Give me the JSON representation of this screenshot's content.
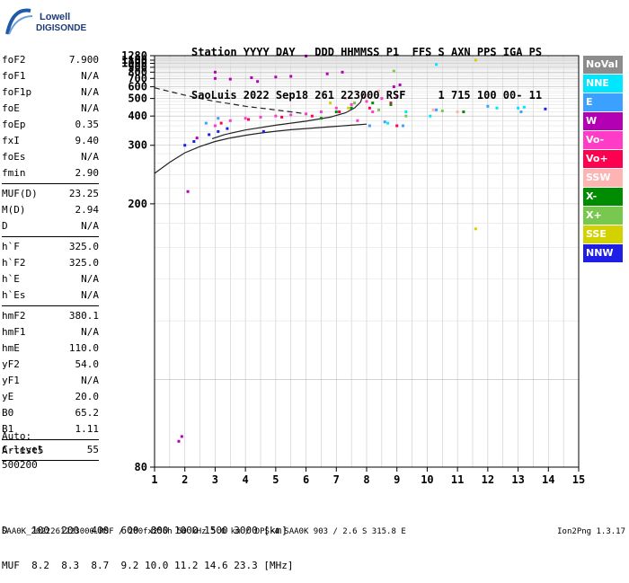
{
  "logo": {
    "line1": "Lowell",
    "line2": "DIGISONDE"
  },
  "header": {
    "line1": "Station YYYY DAY   DDD HHMMSS P1  FFS S AXN PPS IGA PS",
    "line2": "SaoLuis 2022 Sep18 261 223000 RSF     1 715 100 00- 11"
  },
  "params": [
    {
      "name": "foF2",
      "value": "7.900"
    },
    {
      "name": "foF1",
      "value": "N/A"
    },
    {
      "name": "foF1p",
      "value": "N/A"
    },
    {
      "name": "foE",
      "value": "N/A"
    },
    {
      "name": "foEp",
      "value": "0.35"
    },
    {
      "name": "fxI",
      "value": "9.40"
    },
    {
      "name": "foEs",
      "value": "N/A"
    },
    {
      "name": "fmin",
      "value": "2.90"
    },
    {
      "sep": true
    },
    {
      "name": "MUF(D)",
      "value": "23.25"
    },
    {
      "name": "M(D)",
      "value": "2.94"
    },
    {
      "name": "D",
      "value": "N/A"
    },
    {
      "sep": true
    },
    {
      "name": "h`F",
      "value": "325.0"
    },
    {
      "name": "h`F2",
      "value": "325.0"
    },
    {
      "name": "h`E",
      "value": "N/A"
    },
    {
      "name": "h`Es",
      "value": "N/A"
    },
    {
      "sep": true
    },
    {
      "name": "hmF2",
      "value": "380.1"
    },
    {
      "name": "hmF1",
      "value": "N/A"
    },
    {
      "name": "hmE",
      "value": "110.0"
    },
    {
      "name": "yF2",
      "value": "54.0"
    },
    {
      "name": "yF1",
      "value": "N/A"
    },
    {
      "name": "yE",
      "value": "20.0"
    },
    {
      "name": "B0",
      "value": "65.2"
    },
    {
      "name": "B1",
      "value": "1.11"
    },
    {
      "sep": true
    },
    {
      "name": "C-level",
      "value": "55"
    },
    {
      "sep": true
    }
  ],
  "auto": [
    "Auto:",
    "Artist5",
    "500200"
  ],
  "legend": [
    {
      "label": "NoVal",
      "color": "#8c8c8c"
    },
    {
      "label": "NNE",
      "color": "#00e6ff"
    },
    {
      "label": "E",
      "color": "#3ca0ff"
    },
    {
      "label": "W",
      "color": "#b400b4"
    },
    {
      "label": "Vo-",
      "color": "#ff3cc8"
    },
    {
      "label": "Vo+",
      "color": "#ff0050"
    },
    {
      "label": "SSW",
      "color": "#ffb4b4"
    },
    {
      "label": "X-",
      "color": "#008c00"
    },
    {
      "label": "X+",
      "color": "#78c850"
    },
    {
      "label": "SSE",
      "color": "#d2d200"
    },
    {
      "label": "NNW",
      "color": "#1e1ee6"
    }
  ],
  "dmuf": {
    "line1": "D    100  200  400  600  800 1000 1500 3000 [km]",
    "line2": "MUF  8.2  8.3  8.7  9.2 10.0 11.2 14.6 23.3 [MHz]"
  },
  "footer": {
    "left": "SAA0K_2022261223000.RSF / 280fx256h 50 kHz 5.0 km / DPS-4 SAA0K 903 / 2.6 S 315.8 E",
    "right": "Ion2Png 1.3.17"
  },
  "chart_data": {
    "type": "scatter",
    "xlim": [
      1,
      15
    ],
    "ylim": [
      80,
      1280
    ],
    "x_ticks": [
      1,
      2,
      3,
      4,
      5,
      6,
      7,
      8,
      9,
      10,
      11,
      12,
      13,
      14,
      15
    ],
    "y_ticks": [
      80,
      200,
      300,
      400,
      500,
      600,
      700,
      800,
      900,
      1000,
      1100,
      1280
    ],
    "y_scale": "reciprocal",
    "grid": true,
    "series": [
      {
        "name": "NoVal",
        "color": "#8c8c8c",
        "points": []
      },
      {
        "name": "NNE",
        "color": "#00e6ff",
        "points": [
          [
            9.3,
            420
          ],
          [
            10.1,
            400
          ],
          [
            12.3,
            440
          ],
          [
            13.0,
            440
          ],
          [
            13.2,
            445
          ],
          [
            8.7,
            370
          ],
          [
            10.3,
            970
          ]
        ]
      },
      {
        "name": "E",
        "color": "#3ca0ff",
        "points": [
          [
            2.7,
            370
          ],
          [
            3.1,
            390
          ],
          [
            8.1,
            360
          ],
          [
            8.6,
            375
          ],
          [
            9.2,
            360
          ],
          [
            10.3,
            430
          ],
          [
            12.0,
            450
          ],
          [
            13.1,
            420
          ]
        ]
      },
      {
        "name": "W",
        "color": "#b400b4",
        "points": [
          [
            1.8,
            85
          ],
          [
            1.9,
            86
          ],
          [
            2.1,
            215
          ],
          [
            2.4,
            320
          ],
          [
            3.0,
            700
          ],
          [
            3.5,
            690
          ],
          [
            4.2,
            710
          ],
          [
            5.0,
            720
          ],
          [
            5.5,
            730
          ],
          [
            6.7,
            770
          ],
          [
            7.2,
            800
          ],
          [
            8.9,
            600
          ],
          [
            9.1,
            620
          ],
          [
            6.0,
            1265
          ],
          [
            3.0,
            800
          ],
          [
            4.4,
            660
          ]
        ]
      },
      {
        "name": "Vo-",
        "color": "#ff3cc8",
        "points": [
          [
            3.0,
            360
          ],
          [
            3.5,
            380
          ],
          [
            4.0,
            390
          ],
          [
            4.5,
            395
          ],
          [
            5.0,
            400
          ],
          [
            5.5,
            405
          ],
          [
            6.0,
            410
          ],
          [
            6.5,
            420
          ],
          [
            7.0,
            440
          ],
          [
            7.5,
            460
          ],
          [
            8.0,
            480
          ],
          [
            8.5,
            500
          ],
          [
            9.0,
            520
          ],
          [
            8.2,
            420
          ],
          [
            7.7,
            380
          ]
        ]
      },
      {
        "name": "Vo+",
        "color": "#ff0050",
        "points": [
          [
            3.2,
            370
          ],
          [
            4.1,
            385
          ],
          [
            5.2,
            395
          ],
          [
            6.2,
            400
          ],
          [
            7.1,
            420
          ],
          [
            8.1,
            440
          ],
          [
            8.8,
            470
          ],
          [
            9.0,
            360
          ]
        ]
      },
      {
        "name": "SSW",
        "color": "#ffb4b4",
        "points": [
          [
            7.3,
            500
          ],
          [
            8.0,
            520
          ],
          [
            8.4,
            560
          ],
          [
            10.2,
            430
          ],
          [
            11.0,
            420
          ]
        ]
      },
      {
        "name": "X-",
        "color": "#008c00",
        "points": [
          [
            6.5,
            390
          ],
          [
            7.0,
            420
          ],
          [
            7.5,
            440
          ],
          [
            8.2,
            470
          ],
          [
            8.8,
            460
          ],
          [
            11.2,
            420
          ]
        ]
      },
      {
        "name": "X+",
        "color": "#78c850",
        "points": [
          [
            7.6,
            470
          ],
          [
            8.4,
            430
          ],
          [
            9.3,
            400
          ],
          [
            10.5,
            425
          ],
          [
            8.9,
            820
          ]
        ]
      },
      {
        "name": "SSE",
        "color": "#d2d200",
        "points": [
          [
            6.8,
            470
          ],
          [
            7.4,
            440
          ],
          [
            11.6,
            1100
          ],
          [
            11.6,
            175
          ]
        ]
      },
      {
        "name": "NNW",
        "color": "#1e1ee6",
        "points": [
          [
            2.0,
            300
          ],
          [
            2.3,
            310
          ],
          [
            2.8,
            330
          ],
          [
            3.1,
            340
          ],
          [
            3.4,
            350
          ],
          [
            13.9,
            435
          ],
          [
            4.6,
            340
          ]
        ]
      }
    ],
    "curves": [
      {
        "name": "dashed",
        "style": "dashed",
        "points": [
          [
            1.0,
            590
          ],
          [
            1.5,
            555
          ],
          [
            2.0,
            525
          ],
          [
            2.5,
            500
          ],
          [
            3.0,
            480
          ],
          [
            3.5,
            465
          ],
          [
            4.0,
            450
          ],
          [
            4.5,
            440
          ],
          [
            5.0,
            430
          ],
          [
            5.5,
            420
          ],
          [
            6.0,
            410
          ]
        ]
      },
      {
        "name": "lower",
        "style": "solid",
        "points": [
          [
            1.0,
            242
          ],
          [
            1.5,
            262
          ],
          [
            2.0,
            282
          ],
          [
            2.5,
            297
          ],
          [
            3.0,
            310
          ],
          [
            3.5,
            320
          ],
          [
            4.0,
            328
          ],
          [
            4.5,
            335
          ],
          [
            5.0,
            341
          ],
          [
            5.5,
            346
          ],
          [
            6.0,
            350
          ],
          [
            6.5,
            354
          ],
          [
            7.0,
            358
          ],
          [
            7.5,
            362
          ],
          [
            8.0,
            366
          ]
        ]
      },
      {
        "name": "upper",
        "style": "solid",
        "points": [
          [
            2.9,
            318
          ],
          [
            3.3,
            330
          ],
          [
            4.0,
            345
          ],
          [
            5.0,
            362
          ],
          [
            6.0,
            378
          ],
          [
            6.8,
            395
          ],
          [
            7.3,
            415
          ],
          [
            7.6,
            440
          ],
          [
            7.8,
            475
          ],
          [
            7.9,
            540
          ]
        ]
      }
    ]
  }
}
